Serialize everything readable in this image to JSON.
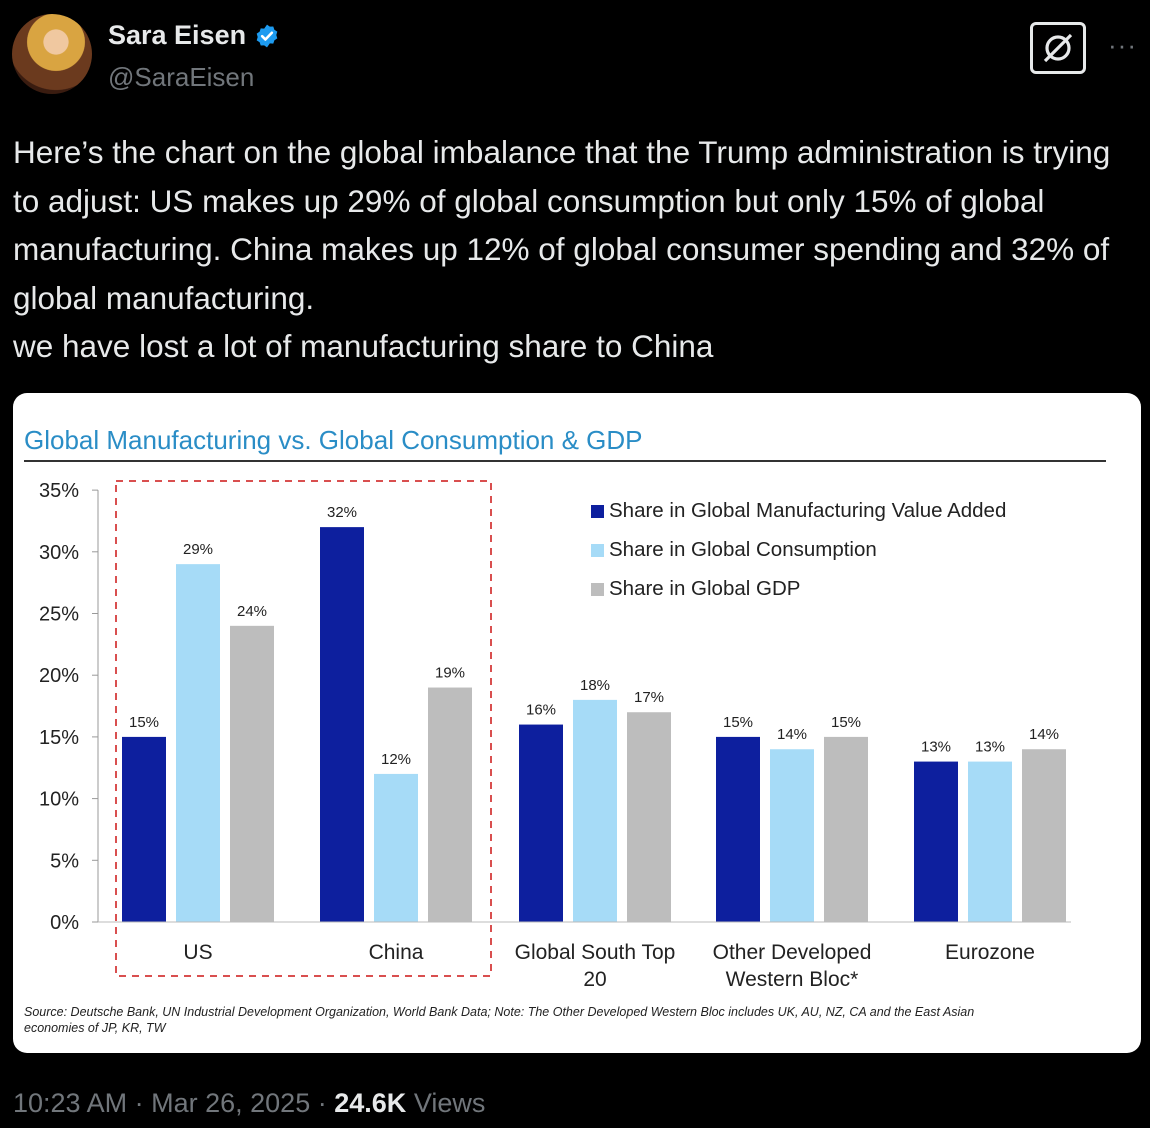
{
  "tweet": {
    "author_name": "Sara Eisen",
    "handle": "@SaraEisen",
    "text": "Here’s the chart on the global imbalance that the Trump administration is trying to adjust: US makes up 29% of global consumption but only 15% of global manufacturing. China makes up 12% of global consumer spending and 32% of global manufacturing.\nwe have lost a lot of manufacturing share to China",
    "time": "10:23 AM",
    "separator": "·",
    "date": "Mar 26, 2025",
    "views_count": "24.6K",
    "views_label": "Views"
  },
  "icons": {
    "verified": "verified-badge-icon",
    "grok": "grok-icon",
    "more": "more-icon"
  },
  "colors": {
    "manufacturing": "#0d1f9e",
    "consumption": "#a6dbf7",
    "gdp": "#bdbdbd",
    "title": "#2a8dc6",
    "highlight_box": "#d94f4f"
  },
  "chart_data": {
    "type": "bar",
    "title": "Global Manufacturing vs. Global Consumption & GDP",
    "categories": [
      "US",
      "China",
      "Global South Top 20",
      "Other Developed Western Bloc*",
      "Eurozone"
    ],
    "series": [
      {
        "name": "Share in Global Manufacturing Value Added",
        "values": [
          15,
          32,
          16,
          15,
          13
        ],
        "labels": [
          "15%",
          "32%",
          "16%",
          "15%",
          "13%"
        ]
      },
      {
        "name": "Share in Global Consumption",
        "values": [
          29,
          12,
          18,
          14,
          13
        ],
        "labels": [
          "29%",
          "12%",
          "18%",
          "14%",
          "13%"
        ]
      },
      {
        "name": "Share in Global GDP",
        "values": [
          24,
          19,
          17,
          15,
          14
        ],
        "labels": [
          "24%",
          "19%",
          "17%",
          "15%",
          "14%"
        ]
      }
    ],
    "yticks": [
      "0%",
      "5%",
      "10%",
      "15%",
      "20%",
      "25%",
      "30%",
      "35%"
    ],
    "ylim": [
      0,
      35
    ],
    "legend_position": "top-right",
    "highlight": "dashed box around US and China",
    "source_note": "Source: Deutsche Bank, UN Industrial Development Organization, World Bank Data; Note: The Other Developed Western Bloc includes UK, AU, NZ, CA and the East Asian economies of JP, KR, TW"
  }
}
